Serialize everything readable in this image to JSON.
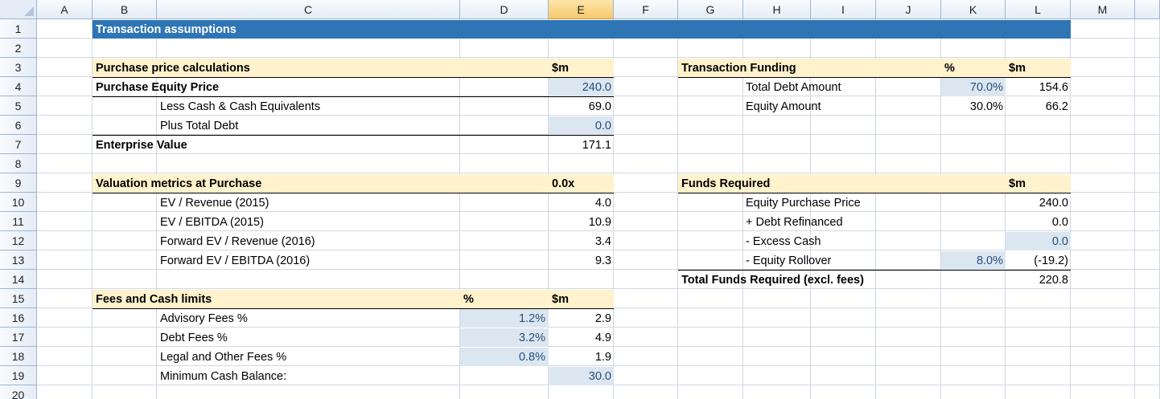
{
  "columns": [
    "A",
    "B",
    "C",
    "D",
    "E",
    "F",
    "G",
    "H",
    "I",
    "J",
    "K",
    "L",
    "M"
  ],
  "selected_column": "E",
  "rows": [
    "1",
    "2",
    "3",
    "4",
    "5",
    "6",
    "7",
    "8",
    "9",
    "10",
    "11",
    "12",
    "13",
    "14",
    "15",
    "16",
    "17",
    "18",
    "19",
    "20"
  ],
  "colors": {
    "title_bar": "#2e75b6",
    "header_band": "#fff2cc",
    "input_cell": "#dce6f1",
    "input_text": "#1f4e79"
  },
  "title": "Transaction assumptions",
  "purchase": {
    "header": "Purchase price calculations",
    "unit": "$m",
    "equity_price_label": "Purchase Equity Price",
    "equity_price_value": "240.0",
    "less_cash_label": "Less Cash & Cash Equivalents",
    "less_cash_value": "69.0",
    "plus_debt_label": "Plus Total Debt",
    "plus_debt_value": "0.0",
    "ev_label": "Enterprise Value",
    "ev_value": "171.1"
  },
  "valuation": {
    "header": "Valuation metrics at Purchase",
    "unit": "0.0x",
    "items": [
      {
        "label": "EV / Revenue (2015)",
        "value": "4.0"
      },
      {
        "label": "EV / EBITDA (2015)",
        "value": "10.9"
      },
      {
        "label": "Forward EV / Revenue (2016)",
        "value": "3.4"
      },
      {
        "label": "Forward EV / EBITDA (2016)",
        "value": "9.3"
      }
    ]
  },
  "fees": {
    "header": "Fees and Cash limits",
    "pct_unit": "%",
    "unit": "$m",
    "items": [
      {
        "label": "Advisory Fees %",
        "pct": "1.2%",
        "value": "2.9"
      },
      {
        "label": "Debt Fees %",
        "pct": "3.2%",
        "value": "4.9"
      },
      {
        "label": "Legal and Other Fees %",
        "pct": "0.8%",
        "value": "1.9"
      }
    ],
    "min_cash_label": "Minimum Cash Balance:",
    "min_cash_value": "30.0"
  },
  "funding": {
    "header": "Transaction Funding",
    "pct_unit": "%",
    "unit": "$m",
    "debt_label": "Total Debt Amount",
    "debt_pct": "70.0%",
    "debt_value": "154.6",
    "equity_label": "Equity Amount",
    "equity_pct": "30.0%",
    "equity_value": "66.2"
  },
  "funds_required": {
    "header": "Funds Required",
    "unit": "$m",
    "equity_price_label": "Equity Purchase Price",
    "equity_price_value": "240.0",
    "debt_refi_label": "+ Debt Refinanced",
    "debt_refi_value": "0.0",
    "excess_cash_label": "- Excess Cash",
    "excess_cash_value": "0.0",
    "rollover_label": "- Equity Rollover",
    "rollover_pct": "8.0%",
    "rollover_value": "(-19.2)",
    "total_label": "Total Funds Required (excl. fees)",
    "total_value": "220.8"
  }
}
